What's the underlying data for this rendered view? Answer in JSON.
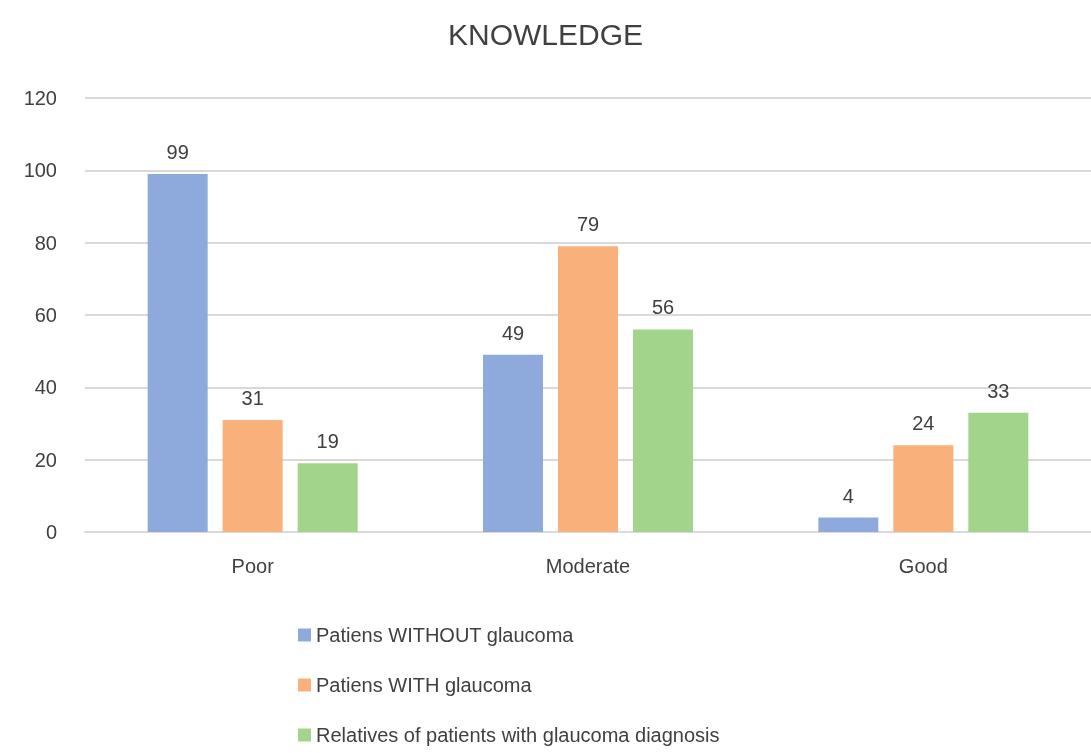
{
  "chart_data": {
    "type": "bar",
    "title": "KNOWLEDGE",
    "categories": [
      "Poor",
      "Moderate",
      "Good"
    ],
    "series": [
      {
        "name": "Patiens WITHOUT glaucoma",
        "color": "#8eaadc",
        "values": [
          99,
          49,
          4
        ]
      },
      {
        "name": "Patiens WITH glaucoma",
        "color": "#f9b07a",
        "values": [
          31,
          79,
          24
        ]
      },
      {
        "name": "Relatives of patients with glaucoma diagnosis",
        "color": "#a3d48c",
        "values": [
          19,
          56,
          33
        ]
      }
    ],
    "ylim": [
      0,
      120
    ],
    "yticks": [
      0,
      20,
      40,
      60,
      80,
      100,
      120
    ],
    "grid": "y",
    "legend": "bottom",
    "data_labels": true
  }
}
